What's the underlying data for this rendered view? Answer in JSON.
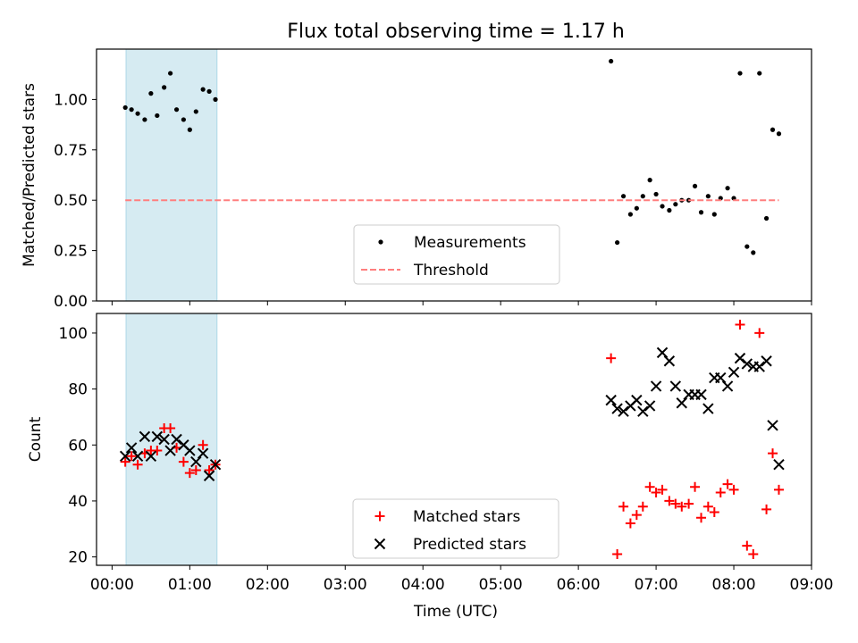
{
  "figure": {
    "title": "Flux total observing time = 1.17 h",
    "xlabel": "Time (UTC)",
    "x_ticks": [
      0,
      1,
      2,
      3,
      4,
      5,
      6,
      7,
      8,
      9
    ],
    "x_tick_labels": [
      "00:00",
      "01:00",
      "02:00",
      "03:00",
      "04:00",
      "05:00",
      "06:00",
      "07:00",
      "08:00",
      "09:00"
    ],
    "xlim": [
      -0.2,
      9.0
    ],
    "shaded_interval": [
      0.18,
      1.35
    ],
    "colors": {
      "shade": "#add8e6",
      "measurements": "#000000",
      "threshold": "#ff7f7f",
      "matched": "#ff0000",
      "predicted": "#000000"
    }
  },
  "chart_data": [
    {
      "type": "scatter",
      "ylabel": "Matched/Predicted stars",
      "ylim": [
        0,
        1.25
      ],
      "y_ticks": [
        0,
        0.25,
        0.5,
        0.75,
        1.0
      ],
      "y_tick_labels": [
        "0.00",
        "0.25",
        "0.50",
        "0.75",
        "1.00"
      ],
      "legend_placement": "lower center",
      "series": [
        {
          "name": "Measurements",
          "marker": "dot",
          "points": [
            [
              0.17,
              0.96
            ],
            [
              0.25,
              0.95
            ],
            [
              0.33,
              0.93
            ],
            [
              0.42,
              0.9
            ],
            [
              0.5,
              1.03
            ],
            [
              0.58,
              0.92
            ],
            [
              0.67,
              1.06
            ],
            [
              0.75,
              1.13
            ],
            [
              0.83,
              0.95
            ],
            [
              0.92,
              0.9
            ],
            [
              1.0,
              0.85
            ],
            [
              1.08,
              0.94
            ],
            [
              1.17,
              1.05
            ],
            [
              1.25,
              1.04
            ],
            [
              1.33,
              1.0
            ],
            [
              6.42,
              1.19
            ],
            [
              6.5,
              0.29
            ],
            [
              6.58,
              0.52
            ],
            [
              6.67,
              0.43
            ],
            [
              6.75,
              0.46
            ],
            [
              6.83,
              0.52
            ],
            [
              6.92,
              0.6
            ],
            [
              7.0,
              0.53
            ],
            [
              7.08,
              0.47
            ],
            [
              7.17,
              0.45
            ],
            [
              7.25,
              0.48
            ],
            [
              7.33,
              0.5
            ],
            [
              7.42,
              0.5
            ],
            [
              7.5,
              0.57
            ],
            [
              7.58,
              0.44
            ],
            [
              7.67,
              0.52
            ],
            [
              7.75,
              0.43
            ],
            [
              7.83,
              0.51
            ],
            [
              7.92,
              0.56
            ],
            [
              8.0,
              0.51
            ],
            [
              8.08,
              1.13
            ],
            [
              8.17,
              0.27
            ],
            [
              8.25,
              0.24
            ],
            [
              8.33,
              1.13
            ],
            [
              8.42,
              0.41
            ],
            [
              8.5,
              0.85
            ],
            [
              8.58,
              0.83
            ]
          ]
        },
        {
          "name": "Threshold",
          "marker": "dashed-line",
          "points": [
            [
              0.17,
              0.5
            ],
            [
              8.58,
              0.5
            ]
          ]
        }
      ]
    },
    {
      "type": "scatter",
      "ylabel": "Count",
      "ylim": [
        17,
        107
      ],
      "y_ticks": [
        20,
        40,
        60,
        80,
        100
      ],
      "y_tick_labels": [
        "20",
        "40",
        "60",
        "80",
        "100"
      ],
      "legend_placement": "lower center",
      "series": [
        {
          "name": "Matched stars",
          "marker": "plus",
          "points": [
            [
              0.17,
              54
            ],
            [
              0.25,
              56
            ],
            [
              0.33,
              53
            ],
            [
              0.42,
              57
            ],
            [
              0.5,
              58
            ],
            [
              0.58,
              58
            ],
            [
              0.67,
              66
            ],
            [
              0.75,
              66
            ],
            [
              0.83,
              59
            ],
            [
              0.92,
              54
            ],
            [
              1.0,
              50
            ],
            [
              1.08,
              51
            ],
            [
              1.17,
              60
            ],
            [
              1.25,
              51
            ],
            [
              1.33,
              53
            ],
            [
              6.42,
              91
            ],
            [
              6.5,
              21
            ],
            [
              6.58,
              38
            ],
            [
              6.67,
              32
            ],
            [
              6.75,
              35
            ],
            [
              6.83,
              38
            ],
            [
              6.92,
              45
            ],
            [
              7.0,
              43
            ],
            [
              7.08,
              44
            ],
            [
              7.17,
              40
            ],
            [
              7.25,
              39
            ],
            [
              7.33,
              38
            ],
            [
              7.42,
              39
            ],
            [
              7.5,
              45
            ],
            [
              7.58,
              34
            ],
            [
              7.67,
              38
            ],
            [
              7.75,
              36
            ],
            [
              7.83,
              43
            ],
            [
              7.92,
              46
            ],
            [
              8.0,
              44
            ],
            [
              8.08,
              103
            ],
            [
              8.17,
              24
            ],
            [
              8.25,
              21
            ],
            [
              8.33,
              100
            ],
            [
              8.42,
              37
            ],
            [
              8.5,
              57
            ],
            [
              8.58,
              44
            ]
          ]
        },
        {
          "name": "Predicted stars",
          "marker": "x",
          "points": [
            [
              0.17,
              56
            ],
            [
              0.25,
              59
            ],
            [
              0.33,
              56
            ],
            [
              0.42,
              63
            ],
            [
              0.5,
              56
            ],
            [
              0.58,
              63
            ],
            [
              0.67,
              62
            ],
            [
              0.75,
              58
            ],
            [
              0.83,
              62
            ],
            [
              0.92,
              60
            ],
            [
              1.0,
              58
            ],
            [
              1.08,
              54
            ],
            [
              1.17,
              57
            ],
            [
              1.25,
              49
            ],
            [
              1.33,
              53
            ],
            [
              6.42,
              76
            ],
            [
              6.5,
              73
            ],
            [
              6.58,
              72
            ],
            [
              6.67,
              74
            ],
            [
              6.75,
              76
            ],
            [
              6.83,
              72
            ],
            [
              6.92,
              74
            ],
            [
              7.0,
              81
            ],
            [
              7.08,
              93
            ],
            [
              7.17,
              90
            ],
            [
              7.25,
              81
            ],
            [
              7.33,
              75
            ],
            [
              7.42,
              78
            ],
            [
              7.5,
              78
            ],
            [
              7.58,
              78
            ],
            [
              7.67,
              73
            ],
            [
              7.75,
              84
            ],
            [
              7.83,
              84
            ],
            [
              7.92,
              81
            ],
            [
              8.0,
              86
            ],
            [
              8.08,
              91
            ],
            [
              8.17,
              89
            ],
            [
              8.25,
              88
            ],
            [
              8.33,
              88
            ],
            [
              8.42,
              90
            ],
            [
              8.5,
              67
            ],
            [
              8.58,
              53
            ]
          ]
        }
      ]
    }
  ]
}
